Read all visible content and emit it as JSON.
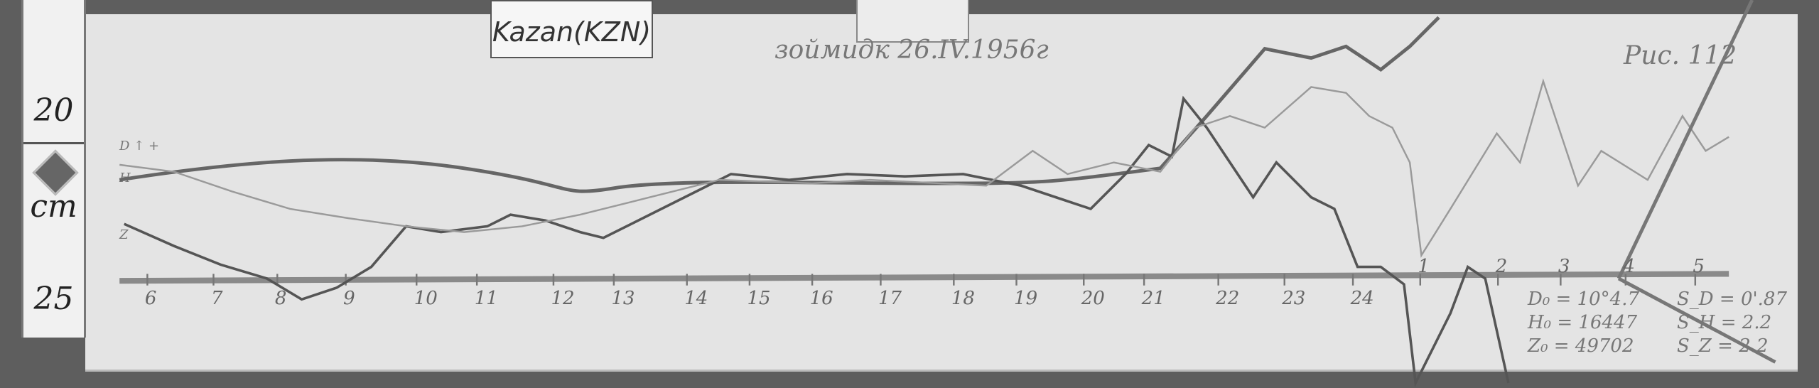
{
  "station_label": "Kazan(KZN)",
  "header_note": "зоймидк 26.IV.1956г",
  "sheet_note": "Рис. 112",
  "ruler": {
    "upper_mark": "20",
    "unit": "cm",
    "lower_mark": "25"
  },
  "trace_labels": {
    "top": "D ↑ +",
    "middle": "H",
    "bottom": "Z"
  },
  "chart_data": {
    "type": "line",
    "title": "",
    "x_tick_labels": [
      "6",
      "7",
      "8",
      "9",
      "10",
      "11",
      "12",
      "13",
      "14",
      "15",
      "16",
      "17",
      "18",
      "19",
      "20",
      "21",
      "22",
      "23",
      "24",
      "1",
      "2",
      "3",
      "4",
      "5"
    ],
    "grid": false,
    "series_count": 3
  },
  "baseline_values": {
    "left": [
      "D₀ = 10°4.7",
      "H₀ = 16447",
      "Z₀ = 49702"
    ],
    "right": [
      "S_D = 0'.87",
      "S_H = 2.2",
      "S_Z = 2.2"
    ]
  },
  "colors": {
    "paper": "#e4e4e4",
    "trace_dark": "#555555",
    "trace_light": "#9a9a9a",
    "baseline": "#8a8a8a"
  }
}
